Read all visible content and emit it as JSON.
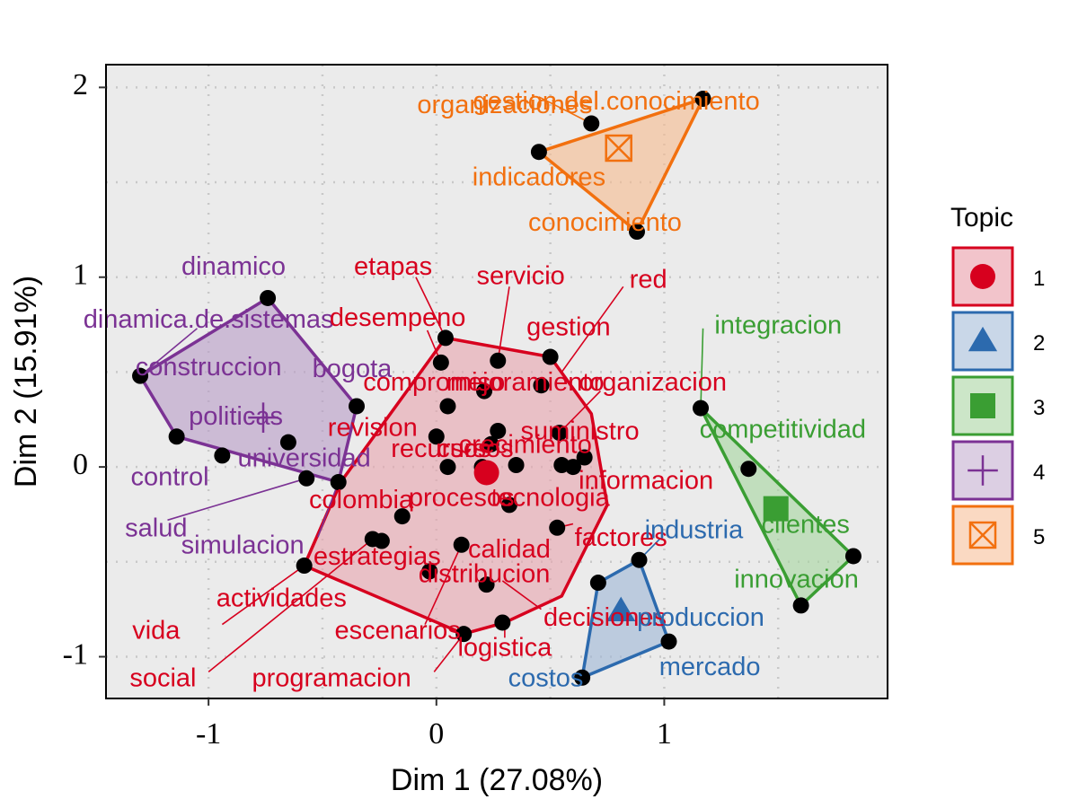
{
  "chart_data": {
    "type": "scatter",
    "title": "",
    "xlabel": "Dim 1 (27.08%)",
    "ylabel": "Dim 2 (15.91%)",
    "xlim": [
      -1.45,
      1.98
    ],
    "ylim": [
      -1.22,
      2.12
    ],
    "x_ticks": [
      -1,
      0,
      1
    ],
    "y_ticks": [
      -1,
      0,
      1,
      2
    ],
    "grid": true,
    "legend": {
      "title": "Topic",
      "position": "right",
      "entries": [
        {
          "label": "1",
          "color": "#D7001E",
          "fill": "#F2C4CB",
          "symbol": "circle"
        },
        {
          "label": "2",
          "color": "#2C6AAE",
          "fill": "#C9D7E8",
          "symbol": "triangle"
        },
        {
          "label": "3",
          "color": "#3A9E33",
          "fill": "#CCE6C8",
          "symbol": "square"
        },
        {
          "label": "4",
          "color": "#7B3294",
          "fill": "#DCCFE3",
          "symbol": "cross"
        },
        {
          "label": "5",
          "color": "#F2700F",
          "fill": "#FAD9C2",
          "symbol": "boxx"
        }
      ]
    },
    "clusters": [
      {
        "topic": "1",
        "color": "#D7001E",
        "fill": "#E8A3AD",
        "centroid": [
          0.22,
          -0.03
        ],
        "hull": [
          [
            0.04,
            0.68
          ],
          [
            0.5,
            0.58
          ],
          [
            0.68,
            0.28
          ],
          [
            0.75,
            -0.2
          ],
          [
            0.55,
            -0.68
          ],
          [
            0.3,
            -0.82
          ],
          [
            0.12,
            -0.88
          ],
          [
            -0.58,
            -0.52
          ],
          [
            -0.42,
            -0.08
          ],
          [
            0.04,
            0.68
          ]
        ],
        "points": [
          {
            "x": 0.02,
            "y": 0.55,
            "label": "desempeno"
          },
          {
            "x": 0.05,
            "y": 0.32,
            "label": "compromiso"
          },
          {
            "x": 0.27,
            "y": 0.56,
            "label": "servicio"
          },
          {
            "x": 0.21,
            "y": 0.4,
            "label": "mejoramiento"
          },
          {
            "x": 0.46,
            "y": 0.43,
            "label": "mejoramiento"
          },
          {
            "x": 0.5,
            "y": 0.58,
            "label": "gestion"
          },
          {
            "x": 0.04,
            "y": 0.68,
            "label": "etapas"
          },
          {
            "x": 0.0,
            "y": 0.16,
            "label": "revision"
          },
          {
            "x": 0.27,
            "y": 0.19,
            "label": "recursos"
          },
          {
            "x": 0.54,
            "y": 0.18,
            "label": "suministro"
          },
          {
            "x": 0.24,
            "y": 0.12,
            "label": "crecimiento"
          },
          {
            "x": 0.05,
            "y": 0.0,
            "label": "recursos"
          },
          {
            "x": 0.2,
            "y": 0.0,
            "label": "cursos"
          },
          {
            "x": 0.35,
            "y": 0.01,
            "label": "crecimiento"
          },
          {
            "x": 0.55,
            "y": 0.01,
            "label": "organizacion"
          },
          {
            "x": 0.6,
            "y": 0.0,
            "label": "informacion"
          },
          {
            "x": 0.65,
            "y": 0.05,
            "label": "informacion"
          },
          {
            "x": 0.32,
            "y": -0.2,
            "label": "tecnologia"
          },
          {
            "x": -0.15,
            "y": -0.26,
            "label": "procesos"
          },
          {
            "x": 0.53,
            "y": -0.32,
            "label": "factores"
          },
          {
            "x": -0.28,
            "y": -0.38,
            "label": "estrategias"
          },
          {
            "x": -0.24,
            "y": -0.39,
            "label": "estrategias"
          },
          {
            "x": 0.11,
            "y": -0.41,
            "label": "calidad"
          },
          {
            "x": -0.03,
            "y": -0.55,
            "label": "distribucion"
          },
          {
            "x": 0.22,
            "y": -0.62,
            "label": "distribucion"
          },
          {
            "x": 0.29,
            "y": -0.82,
            "label": "decisiones"
          },
          {
            "x": 0.12,
            "y": -0.88,
            "label": "logistica"
          },
          {
            "x": -0.58,
            "y": -0.52,
            "label": "actividades"
          }
        ]
      },
      {
        "topic": "2",
        "color": "#2C6AAE",
        "fill": "#9DB6D6",
        "centroid": [
          0.81,
          -0.76
        ],
        "hull": [
          [
            0.71,
            -0.61
          ],
          [
            0.89,
            -0.49
          ],
          [
            1.02,
            -0.92
          ],
          [
            0.64,
            -1.11
          ],
          [
            0.71,
            -0.61
          ]
        ],
        "points": [
          {
            "x": 0.71,
            "y": -0.61,
            "label": "decisiones"
          },
          {
            "x": 0.89,
            "y": -0.49,
            "label": "industria"
          },
          {
            "x": 1.02,
            "y": -0.92,
            "label": "produccion"
          },
          {
            "x": 0.64,
            "y": -1.11,
            "label": "costos"
          }
        ]
      },
      {
        "topic": "3",
        "color": "#3A9E33",
        "fill": "#A5D59F",
        "centroid": [
          1.49,
          -0.22
        ],
        "hull": [
          [
            1.16,
            0.31
          ],
          [
            1.83,
            -0.47
          ],
          [
            1.6,
            -0.73
          ],
          [
            1.16,
            0.31
          ]
        ],
        "points": [
          {
            "x": 1.16,
            "y": 0.31,
            "label": "integracion"
          },
          {
            "x": 1.37,
            "y": -0.01,
            "label": "competitividad"
          },
          {
            "x": 1.83,
            "y": -0.47,
            "label": "clientes"
          },
          {
            "x": 1.6,
            "y": -0.73,
            "label": "innovacion"
          }
        ]
      },
      {
        "topic": "4",
        "color": "#7B3294",
        "fill": "#B89BC6",
        "centroid": [
          -0.76,
          0.26
        ],
        "hull": [
          [
            -0.74,
            0.89
          ],
          [
            -0.35,
            0.32
          ],
          [
            -0.43,
            -0.08
          ],
          [
            -1.14,
            0.16
          ],
          [
            -1.3,
            0.48
          ],
          [
            -0.74,
            0.89
          ]
        ],
        "points": [
          {
            "x": -0.74,
            "y": 0.89,
            "label": "dinamico"
          },
          {
            "x": -1.3,
            "y": 0.48,
            "label": "construccion"
          },
          {
            "x": -0.35,
            "y": 0.32,
            "label": "bogota"
          },
          {
            "x": -1.14,
            "y": 0.16,
            "label": "control"
          },
          {
            "x": -0.94,
            "y": 0.06,
            "label": "politicas"
          },
          {
            "x": -0.65,
            "y": 0.13,
            "label": "universidad"
          },
          {
            "x": -0.57,
            "y": -0.06,
            "label": "salud"
          },
          {
            "x": -0.43,
            "y": -0.08,
            "label": "colombia"
          }
        ]
      },
      {
        "topic": "5",
        "color": "#F2700F",
        "fill": "#F7BB8E",
        "centroid": [
          0.8,
          1.68
        ],
        "hull": [
          [
            0.45,
            1.66
          ],
          [
            1.17,
            1.94
          ],
          [
            0.88,
            1.24
          ],
          [
            0.45,
            1.66
          ]
        ],
        "points": [
          {
            "x": 0.45,
            "y": 1.66,
            "label": "organizaciones"
          },
          {
            "x": 0.68,
            "y": 1.81,
            "label": "gestion.del.conocimiento"
          },
          {
            "x": 1.17,
            "y": 1.94,
            "label": "gestion.del.conocimiento"
          },
          {
            "x": 0.88,
            "y": 1.24,
            "label": "conocimiento"
          }
        ]
      }
    ],
    "annotations": [
      {
        "text": "organizaciones",
        "topic": "5",
        "x": 0.3,
        "y": 1.9
      },
      {
        "text": "gestion.del.conocimiento",
        "topic": "5",
        "x": 0.79,
        "y": 1.92
      },
      {
        "text": "indicadores",
        "topic": "5",
        "x": 0.45,
        "y": 1.52
      },
      {
        "text": "conocimiento",
        "topic": "5",
        "x": 0.74,
        "y": 1.28
      },
      {
        "text": "dinamico",
        "topic": "4",
        "x": -0.89,
        "y": 1.05
      },
      {
        "text": "dinamica.de.sistemas",
        "topic": "4",
        "x": -1.0,
        "y": 0.77
      },
      {
        "text": "construccion",
        "topic": "4",
        "x": -1.0,
        "y": 0.52
      },
      {
        "text": "bogota",
        "topic": "4",
        "x": -0.37,
        "y": 0.51
      },
      {
        "text": "politicas",
        "topic": "4",
        "x": -0.88,
        "y": 0.26
      },
      {
        "text": "universidad",
        "topic": "4",
        "x": -0.58,
        "y": 0.04
      },
      {
        "text": "control",
        "topic": "4",
        "x": -1.17,
        "y": -0.06
      },
      {
        "text": "salud",
        "topic": "4",
        "x": -1.23,
        "y": -0.33
      },
      {
        "text": "simulacion",
        "topic": "4",
        "x": -0.85,
        "y": -0.42
      },
      {
        "text": "etapas",
        "topic": "1",
        "x": -0.19,
        "y": 1.05
      },
      {
        "text": "servicio",
        "topic": "1",
        "x": 0.37,
        "y": 1.0
      },
      {
        "text": "red",
        "topic": "1",
        "x": 0.93,
        "y": 0.98
      },
      {
        "text": "desempeno",
        "topic": "1",
        "x": -0.17,
        "y": 0.78
      },
      {
        "text": "gestion",
        "topic": "1",
        "x": 0.58,
        "y": 0.73
      },
      {
        "text": "compromiso",
        "topic": "1",
        "x": -0.01,
        "y": 0.44
      },
      {
        "text": "mejoramiento",
        "topic": "1",
        "x": 0.39,
        "y": 0.44
      },
      {
        "text": "organizacion",
        "topic": "1",
        "x": 0.95,
        "y": 0.44
      },
      {
        "text": "revision",
        "topic": "1",
        "x": -0.28,
        "y": 0.2
      },
      {
        "text": "suministro",
        "topic": "1",
        "x": 0.63,
        "y": 0.18
      },
      {
        "text": "recursos",
        "topic": "1",
        "x": 0.02,
        "y": 0.09
      },
      {
        "text": "cursos",
        "topic": "1",
        "x": 0.17,
        "y": 0.09
      },
      {
        "text": "crecimiento",
        "topic": "1",
        "x": 0.39,
        "y": 0.11
      },
      {
        "text": "informacion",
        "topic": "1",
        "x": 0.92,
        "y": -0.08
      },
      {
        "text": "colombia",
        "topic": "1",
        "x": -0.33,
        "y": -0.18
      },
      {
        "text": "procesos",
        "topic": "1",
        "x": 0.11,
        "y": -0.17
      },
      {
        "text": "tecnologia",
        "topic": "1",
        "x": 0.5,
        "y": -0.17
      },
      {
        "text": "factores",
        "topic": "1",
        "x": 0.81,
        "y": -0.38
      },
      {
        "text": "calidad",
        "topic": "1",
        "x": 0.32,
        "y": -0.44
      },
      {
        "text": "estrategias",
        "topic": "1",
        "x": -0.26,
        "y": -0.48
      },
      {
        "text": "distribucion",
        "topic": "1",
        "x": 0.21,
        "y": -0.57
      },
      {
        "text": "actividades",
        "topic": "1",
        "x": -0.68,
        "y": -0.7
      },
      {
        "text": "decisiones",
        "topic": "1",
        "x": 0.74,
        "y": -0.8
      },
      {
        "text": "vida",
        "topic": "1",
        "x": -1.23,
        "y": -0.87
      },
      {
        "text": "escenarios",
        "topic": "1",
        "x": -0.17,
        "y": -0.87
      },
      {
        "text": "logistica",
        "topic": "1",
        "x": 0.3,
        "y": -0.96
      },
      {
        "text": "social",
        "topic": "1",
        "x": -1.2,
        "y": -1.12
      },
      {
        "text": "programacion",
        "topic": "1",
        "x": -0.46,
        "y": -1.12
      },
      {
        "text": "industria",
        "topic": "2",
        "x": 1.13,
        "y": -0.34
      },
      {
        "text": "produccion",
        "topic": "2",
        "x": 1.16,
        "y": -0.8
      },
      {
        "text": "mercado",
        "topic": "2",
        "x": 1.2,
        "y": -1.06
      },
      {
        "text": "costos",
        "topic": "2",
        "x": 0.48,
        "y": -1.12
      },
      {
        "text": "integracion",
        "topic": "3",
        "x": 1.5,
        "y": 0.74
      },
      {
        "text": "competitividad",
        "topic": "3",
        "x": 1.52,
        "y": 0.19
      },
      {
        "text": "clientes",
        "topic": "3",
        "x": 1.62,
        "y": -0.31
      },
      {
        "text": "innovacion",
        "topic": "3",
        "x": 1.58,
        "y": -0.6
      }
    ],
    "leaders": [
      {
        "topic": "5",
        "from": [
          0.45,
          1.95
        ],
        "to": [
          0.68,
          1.81
        ]
      },
      {
        "topic": "4",
        "from": [
          -1.05,
          0.73
        ],
        "to": [
          -1.3,
          0.48
        ]
      },
      {
        "topic": "4",
        "from": [
          -1.18,
          -0.28
        ],
        "to": [
          -0.57,
          -0.06
        ]
      },
      {
        "topic": "4",
        "from": [
          -0.52,
          -0.37
        ],
        "to": [
          -0.43,
          -0.08
        ]
      },
      {
        "topic": "1",
        "from": [
          -0.09,
          1.0
        ],
        "to": [
          0.04,
          0.68
        ]
      },
      {
        "topic": "1",
        "from": [
          0.82,
          0.95
        ],
        "to": [
          0.55,
          0.5
        ]
      },
      {
        "topic": "1",
        "from": [
          0.32,
          0.95
        ],
        "to": [
          0.27,
          0.56
        ]
      },
      {
        "topic": "1",
        "from": [
          -0.04,
          0.72
        ],
        "to": [
          0.02,
          0.55
        ]
      },
      {
        "topic": "1",
        "from": [
          0.72,
          0.4
        ],
        "to": [
          0.54,
          0.18
        ]
      },
      {
        "topic": "1",
        "from": [
          0.6,
          -0.3
        ],
        "to": [
          0.53,
          -0.32
        ]
      },
      {
        "topic": "1",
        "from": [
          -0.94,
          -0.83
        ],
        "to": [
          -0.58,
          -0.52
        ]
      },
      {
        "topic": "1",
        "from": [
          -1.0,
          -1.08
        ],
        "to": [
          -0.28,
          -0.38
        ]
      },
      {
        "topic": "1",
        "from": [
          -0.05,
          -0.83
        ],
        "to": [
          0.11,
          -0.41
        ]
      },
      {
        "topic": "1",
        "from": [
          -0.01,
          -1.08
        ],
        "to": [
          0.12,
          -0.88
        ]
      },
      {
        "topic": "1",
        "from": [
          0.46,
          -0.75
        ],
        "to": [
          0.29,
          -0.6
        ]
      },
      {
        "topic": "1",
        "from": [
          0.3,
          -0.9
        ],
        "to": [
          0.3,
          -0.82
        ]
      },
      {
        "topic": "2",
        "from": [
          0.98,
          -0.38
        ],
        "to": [
          0.89,
          -0.49
        ]
      },
      {
        "topic": "3",
        "from": [
          1.17,
          0.73
        ],
        "to": [
          1.16,
          0.31
        ]
      }
    ]
  }
}
